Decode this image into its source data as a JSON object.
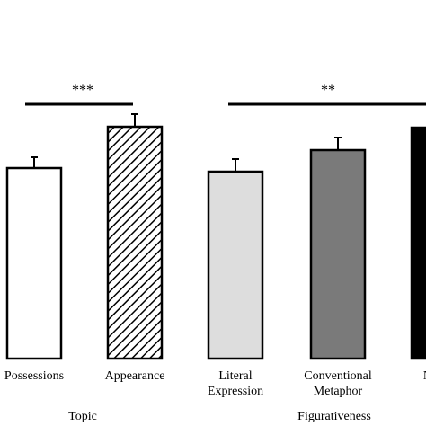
{
  "chart_data": {
    "type": "bar",
    "title": "",
    "xlabel": "",
    "ylabel": "",
    "categories": [
      "Possessions",
      "Appearance",
      "Literal Expression",
      "Conventional Metaphor",
      "Novel"
    ],
    "category_lines": [
      [
        "Possessions"
      ],
      [
        "Appearance"
      ],
      [
        "Literal",
        "Expression"
      ],
      [
        "Conventional",
        "Metaphor"
      ],
      [
        "Novel"
      ]
    ],
    "values": [
      212,
      258,
      208,
      232,
      257
    ],
    "errors": [
      12,
      14,
      14,
      14,
      0
    ],
    "fills": [
      "#ffffff",
      "hatch",
      "#dddddd",
      "#7a7a7a",
      "#000000"
    ],
    "groups": [
      {
        "label": "Topic",
        "indices": [
          0,
          1
        ]
      },
      {
        "label": "Figurativeness",
        "indices": [
          2,
          3,
          4
        ]
      }
    ],
    "significance": [
      {
        "label": "***",
        "from": 0,
        "to": 1
      },
      {
        "label": "**",
        "from": 2,
        "to": 4
      }
    ],
    "ylim": [
      0,
      308
    ],
    "grid": false,
    "axis_color": "#000000"
  }
}
